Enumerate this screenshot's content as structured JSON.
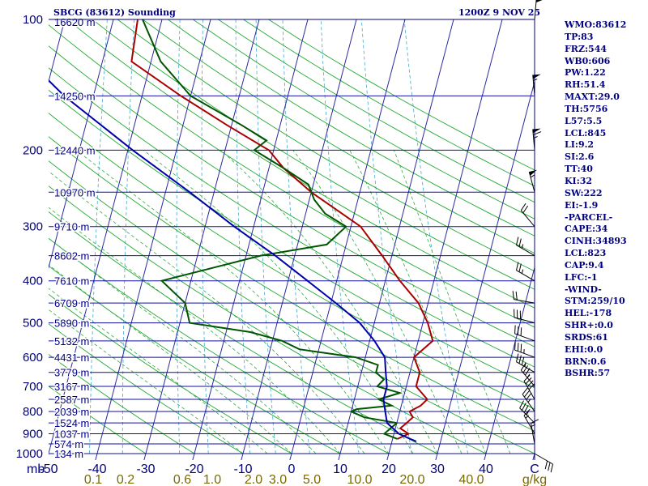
{
  "header": {
    "station": "SBCG (83612) Sounding",
    "time": "1200Z  9 NOV 25"
  },
  "indices": [
    "WMO:83612",
    "TP:83",
    "FRZ:544",
    "WB0:606",
    "PW:1.22",
    "RH:51.4",
    "MAXT:29.0",
    "TH:5756",
    "L57:5.5",
    "LCL:845",
    "LI:9.2",
    "SI:2.6",
    "TT:40",
    "KI:32",
    "SW:222",
    "EI:-1.9",
    "-PARCEL-",
    "CAPE:34",
    "CINH:34893",
    "LCL:823",
    "CAP:9.4",
    "LFC:-1",
    "-WIND-",
    "STM:259/10",
    "HEL:-178",
    "SHR+:0.0",
    "SRDS:61",
    "EHI:0.0",
    "BRN:0.6",
    "BSHR:57"
  ],
  "colors": {
    "frame": "#000080",
    "isobar": "#1010a0",
    "isotherm": "#2a2aa0",
    "dry_adiabat": "#22aa33",
    "moist_adiabat": "#33aa44",
    "mixing_ratio": "#44aacc",
    "temperature": "#aa0000",
    "dewpoint": "#005500",
    "parcel": "#0000aa",
    "wind": "#000000",
    "mixing_label": "#7a6a00"
  },
  "chart_data": {
    "type": "line",
    "title": "SBCG (83612) Sounding",
    "subtitle": "1200Z  9 NOV 25",
    "xlabel": "C",
    "ylabel": "mb",
    "xlim": [
      -50,
      50
    ],
    "ylim": [
      1000,
      100
    ],
    "yscale": "log",
    "pressure_ticks": [
      100,
      200,
      300,
      400,
      500,
      600,
      700,
      800,
      900,
      1000
    ],
    "temp_ticks": [
      -50,
      -40,
      -30,
      -20,
      -10,
      0,
      10,
      20,
      30,
      40
    ],
    "mixing_ratio_labels": [
      "0.1",
      "0.2",
      "0.6",
      "1.0",
      "2.0",
      "3.0",
      "5.0",
      "10.0",
      "20.0",
      "40.0",
      "g/kg"
    ],
    "mixing_ratio_values": [
      0.1,
      0.2,
      0.6,
      1.0,
      2.0,
      3.0,
      5.0,
      10.0,
      20.0,
      40.0
    ],
    "height_labels": [
      {
        "p": 100,
        "label": "16620 m"
      },
      {
        "p": 150,
        "label": "14250 m"
      },
      {
        "p": 200,
        "label": "12440 m"
      },
      {
        "p": 250,
        "label": "10970 m"
      },
      {
        "p": 300,
        "label": "9710 m"
      },
      {
        "p": 350,
        "label": "8602 m"
      },
      {
        "p": 400,
        "label": "7610 m"
      },
      {
        "p": 450,
        "label": "6709 m"
      },
      {
        "p": 500,
        "label": "5890 m"
      },
      {
        "p": 550,
        "label": "5132 m"
      },
      {
        "p": 600,
        "label": "4431 m"
      },
      {
        "p": 650,
        "label": "3779 m"
      },
      {
        "p": 700,
        "label": "3167 m"
      },
      {
        "p": 750,
        "label": "2587 m"
      },
      {
        "p": 800,
        "label": "2039 m"
      },
      {
        "p": 850,
        "label": "1524 m"
      },
      {
        "p": 900,
        "label": "1037 m"
      },
      {
        "p": 950,
        "label": "574 m"
      },
      {
        "p": 1000,
        "label": "134 m"
      }
    ],
    "series": [
      {
        "name": "temperature",
        "p": [
          925,
          900,
          875,
          850,
          825,
          800,
          775,
          750,
          700,
          650,
          600,
          550,
          500,
          450,
          400,
          350,
          300,
          250,
          220,
          200,
          175,
          150,
          125,
          100
        ],
        "t": [
          21,
          23,
          21,
          22,
          23,
          22,
          24,
          25,
          22,
          22,
          20,
          23,
          21,
          18,
          13,
          8,
          2,
          -10,
          -17,
          -21,
          -31,
          -42,
          -54,
          -55
        ]
      },
      {
        "name": "dewpoint",
        "p": [
          925,
          900,
          875,
          850,
          825,
          800,
          790,
          775,
          750,
          725,
          700,
          675,
          650,
          625,
          600,
          575,
          550,
          525,
          500,
          450,
          400,
          350,
          330,
          300,
          280,
          260,
          240,
          220,
          200,
          190,
          175,
          150,
          125,
          100
        ],
        "t": [
          21,
          18,
          19,
          20,
          13,
          10,
          11,
          18,
          15,
          19,
          14,
          15,
          13,
          13,
          8,
          -4,
          -8,
          -15,
          -28,
          -30,
          -36,
          -17,
          -4,
          -1,
          -6,
          -9,
          -11,
          -17,
          -24,
          -22,
          -28,
          -40,
          -48,
          -54
        ]
      },
      {
        "name": "parcel",
        "p": [
          938,
          900,
          850,
          800,
          750,
          700,
          650,
          600,
          550,
          500,
          450,
          400,
          350,
          300,
          250,
          200,
          150,
          100
        ],
        "t": [
          25,
          21,
          18,
          17,
          16,
          16,
          15,
          14,
          11,
          7,
          1,
          -6,
          -14,
          -24,
          -35,
          -49,
          -66,
          -86
        ]
      }
    ],
    "wind_barbs": [
      {
        "p": 1000,
        "dir": 120,
        "spd": 30
      },
      {
        "p": 950,
        "dir": 350,
        "spd": 15
      },
      {
        "p": 900,
        "dir": 330,
        "spd": 15
      },
      {
        "p": 850,
        "dir": 315,
        "spd": 35
      },
      {
        "p": 800,
        "dir": 325,
        "spd": 35
      },
      {
        "p": 750,
        "dir": 330,
        "spd": 40
      },
      {
        "p": 700,
        "dir": 320,
        "spd": 35
      },
      {
        "p": 650,
        "dir": 300,
        "spd": 35
      },
      {
        "p": 600,
        "dir": 290,
        "spd": 35
      },
      {
        "p": 550,
        "dir": 290,
        "spd": 30
      },
      {
        "p": 500,
        "dir": 285,
        "spd": 30
      },
      {
        "p": 450,
        "dir": 280,
        "spd": 20
      },
      {
        "p": 400,
        "dir": 300,
        "spd": 25
      },
      {
        "p": 350,
        "dir": 300,
        "spd": 25
      },
      {
        "p": 300,
        "dir": 320,
        "spd": 20
      },
      {
        "p": 250,
        "dir": 345,
        "spd": 55
      },
      {
        "p": 200,
        "dir": 355,
        "spd": 65
      },
      {
        "p": 150,
        "dir": 355,
        "spd": 55
      },
      {
        "p": 100,
        "dir": 5,
        "spd": 50
      }
    ]
  }
}
